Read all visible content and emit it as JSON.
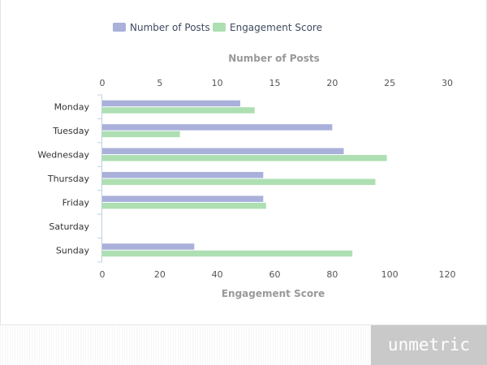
{
  "chart_data": {
    "type": "bar",
    "orientation": "horizontal",
    "categories": [
      "Monday",
      "Tuesday",
      "Wednesday",
      "Thursday",
      "Friday",
      "Saturday",
      "Sunday"
    ],
    "series": [
      {
        "name": "Number of Posts",
        "axis": "top",
        "color": "#a9b0da",
        "values": [
          12,
          20,
          21,
          14,
          14,
          0,
          8
        ]
      },
      {
        "name": "Engagement Score",
        "axis": "bottom",
        "color": "#addfb3",
        "values": [
          53,
          27,
          99,
          95,
          57,
          0,
          87
        ]
      }
    ],
    "top_axis": {
      "title": "Number of Posts",
      "range": [
        0,
        30
      ],
      "ticks": [
        0,
        5,
        10,
        15,
        20,
        25,
        30
      ]
    },
    "bottom_axis": {
      "title": "Engagement Score",
      "range": [
        0,
        120
      ],
      "ticks": [
        0,
        20,
        40,
        60,
        80,
        100,
        120
      ]
    },
    "legend_position": "top-center",
    "grid": false
  },
  "brand": {
    "text": "unmetric"
  }
}
